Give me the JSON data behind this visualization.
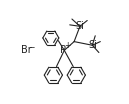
{
  "background_color": "#ffffff",
  "line_color": "#222222",
  "line_width": 0.8,
  "text_color": "#222222",
  "figsize": [
    1.29,
    1.04
  ],
  "dpi": 100,
  "xlim": [
    -1.3,
    1.3
  ],
  "ylim": [
    -1.1,
    1.1
  ],
  "font_size": 7.0,
  "font_size_small": 5.5
}
